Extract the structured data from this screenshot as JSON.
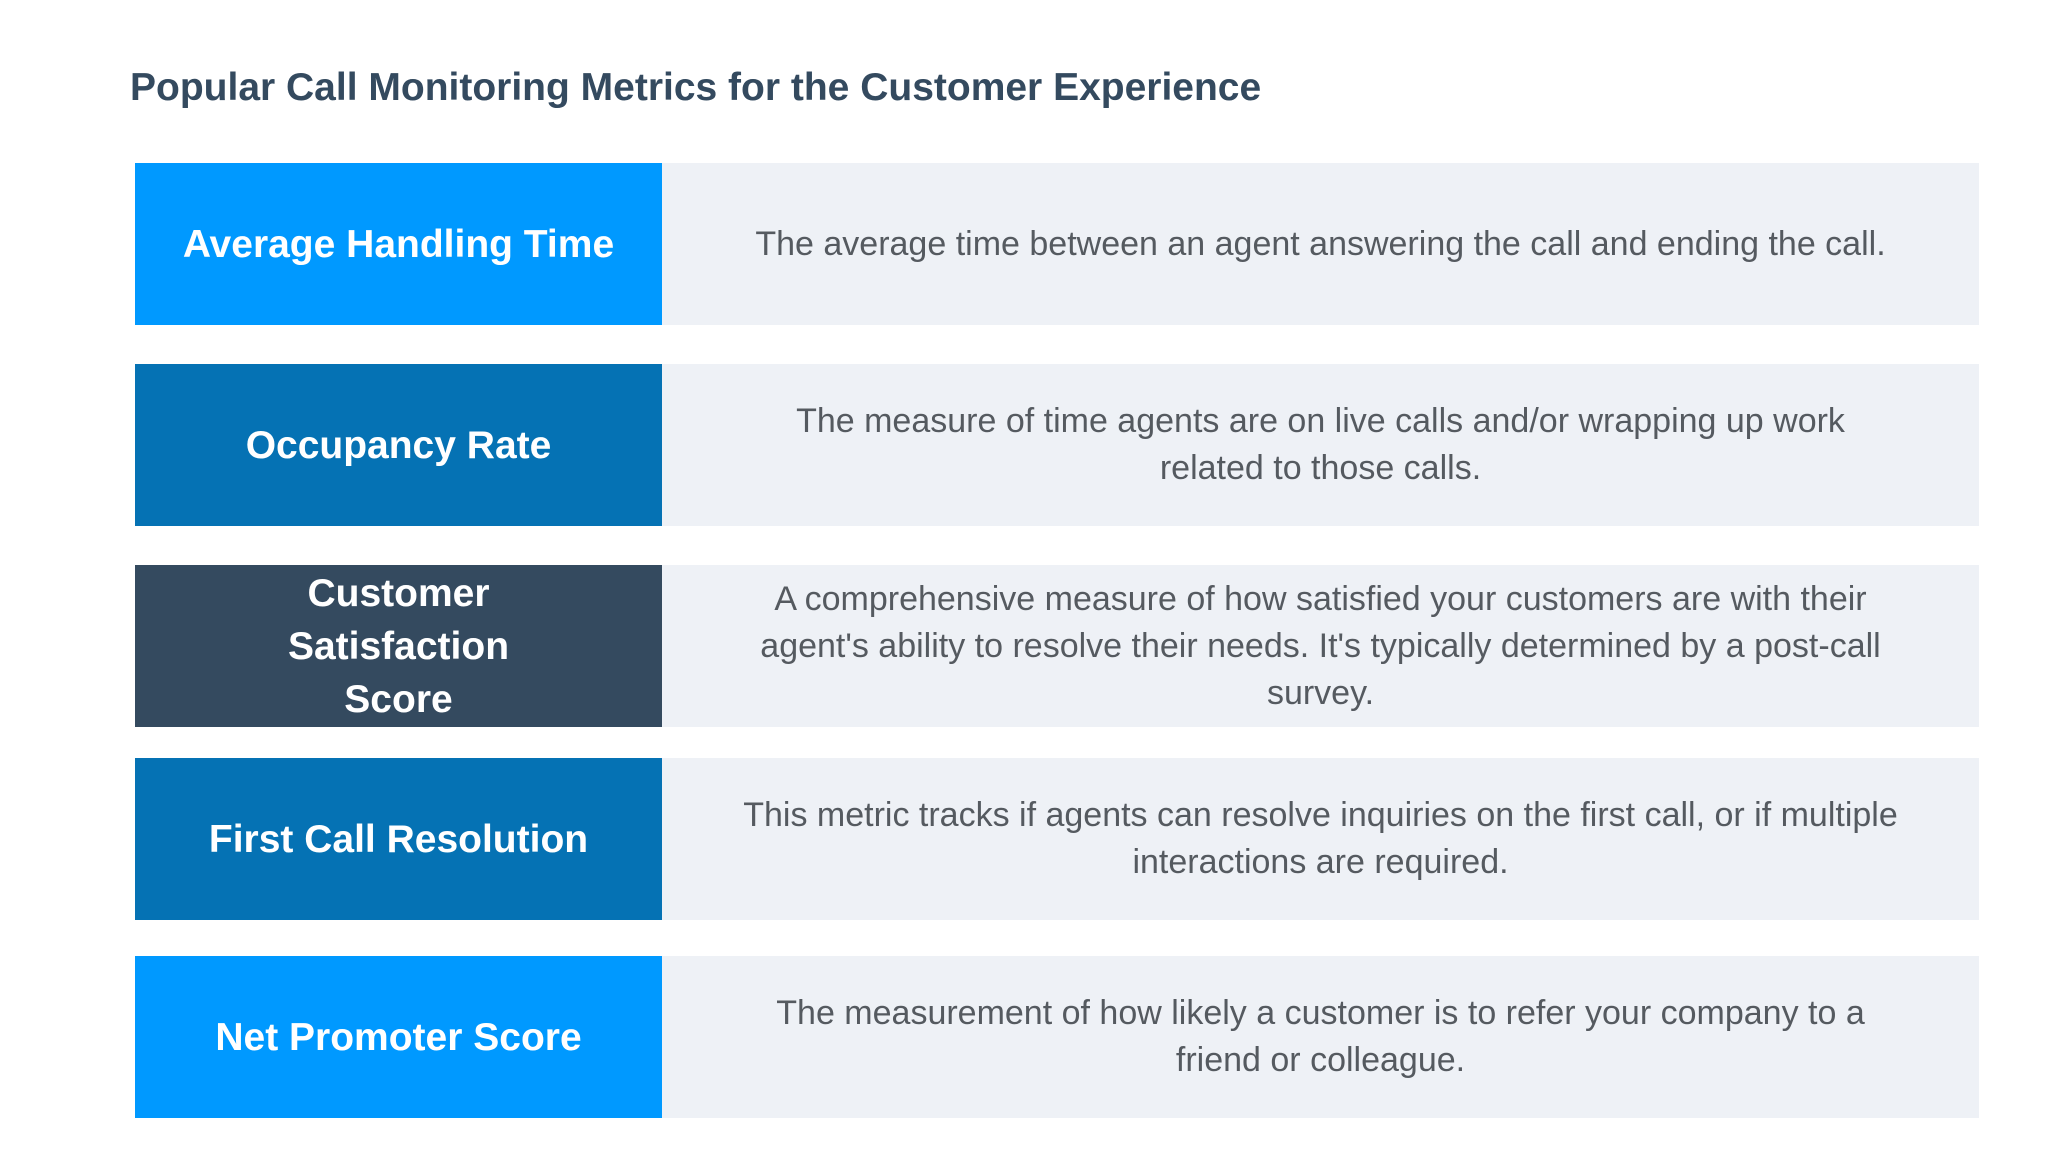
{
  "title": "Popular Call Monitoring Metrics for the Customer Experience",
  "colors": {
    "light_blue": "#0099ff",
    "mid_blue": "#0572b4",
    "dark_slate": "#344a5f",
    "panel_bg": "#eef1f6"
  },
  "metrics": [
    {
      "name": "Average Handling Time",
      "description": "The average time between an agent answering the call and ending the call.",
      "color": "#0099ff"
    },
    {
      "name": "Occupancy Rate",
      "description": "The measure of time agents are on live calls and/or wrapping up work related to those calls.",
      "color": "#0572b4"
    },
    {
      "name": "Customer Satisfaction Score",
      "description": "A comprehensive measure of how satisfied your customers are with their agent's ability to resolve their needs. It's typically determined by a post-call survey.",
      "color": "#344a5f"
    },
    {
      "name": "First Call Resolution",
      "description": "This metric tracks if agents can resolve inquiries on the first call, or if multiple interactions are required.",
      "color": "#0572b4"
    },
    {
      "name": "Net Promoter Score",
      "description": "The measurement of how likely a customer is to refer your company to a friend or colleague.",
      "color": "#0099ff"
    }
  ]
}
